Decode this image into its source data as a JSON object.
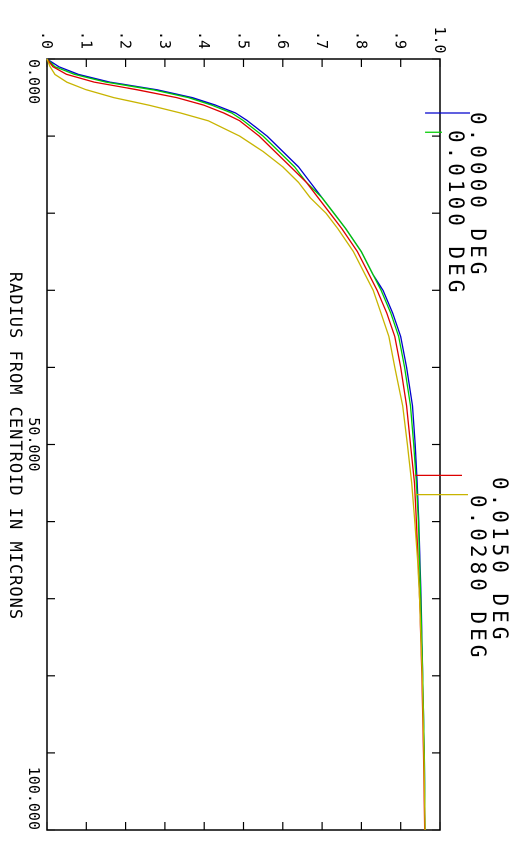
{
  "chart_data": {
    "type": "line",
    "xlabel": "RADIUS FROM CENTROID IN MICRONS",
    "xlim": [
      0,
      100
    ],
    "ylim": [
      0,
      1.0
    ],
    "x_tick_labels": [
      {
        "value": 0,
        "label": "0.000"
      },
      {
        "value": 50,
        "label": "50.000"
      },
      {
        "value": 100,
        "label": "100.000"
      }
    ],
    "y_tick_labels": [
      {
        "value": 0.0,
        "label": ".0"
      },
      {
        "value": 0.1,
        "label": ".1"
      },
      {
        "value": 0.2,
        "label": ".2"
      },
      {
        "value": 0.3,
        "label": ".3"
      },
      {
        "value": 0.4,
        "label": ".4"
      },
      {
        "value": 0.5,
        "label": ".5"
      },
      {
        "value": 0.6,
        "label": ".6"
      },
      {
        "value": 0.7,
        "label": ".7"
      },
      {
        "value": 0.8,
        "label": ".8"
      },
      {
        "value": 0.9,
        "label": ".9"
      },
      {
        "value": 1.0,
        "label": "1.0"
      }
    ],
    "series": [
      {
        "name": "0.0000 DEG",
        "color": "#0000cc",
        "x": [
          0,
          1,
          2,
          3,
          4,
          5,
          6,
          7,
          8,
          10,
          12,
          14,
          16,
          18,
          20,
          22,
          25,
          28,
          30,
          33,
          36,
          40,
          45,
          50,
          55,
          60,
          70,
          80,
          90,
          100
        ],
        "y": [
          0.0,
          0.03,
          0.08,
          0.16,
          0.28,
          0.37,
          0.43,
          0.48,
          0.51,
          0.56,
          0.6,
          0.64,
          0.67,
          0.7,
          0.73,
          0.76,
          0.8,
          0.83,
          0.855,
          0.88,
          0.9,
          0.915,
          0.93,
          0.937,
          0.942,
          0.946,
          0.952,
          0.956,
          0.96,
          0.962
        ]
      },
      {
        "name": "0.0100 DEG",
        "color": "#00cc00",
        "x": [
          0,
          1,
          2,
          3,
          4,
          5,
          6,
          7,
          8,
          10,
          12,
          14,
          16,
          18,
          20,
          22,
          25,
          28,
          30,
          33,
          36,
          40,
          45,
          50,
          55,
          60,
          70,
          80,
          90,
          100
        ],
        "y": [
          0.0,
          0.02,
          0.07,
          0.15,
          0.27,
          0.36,
          0.42,
          0.47,
          0.5,
          0.55,
          0.59,
          0.63,
          0.66,
          0.7,
          0.73,
          0.76,
          0.8,
          0.83,
          0.85,
          0.875,
          0.895,
          0.91,
          0.925,
          0.933,
          0.94,
          0.945,
          0.951,
          0.956,
          0.96,
          0.962
        ]
      },
      {
        "name": "0.0150 DEG",
        "color": "#dd0000",
        "x": [
          0,
          1,
          2,
          3,
          4,
          5,
          6,
          7,
          8,
          10,
          12,
          14,
          16,
          18,
          20,
          22,
          25,
          28,
          30,
          33,
          36,
          40,
          45,
          50,
          55,
          60,
          70,
          80,
          90,
          100
        ],
        "y": [
          0.0,
          0.015,
          0.05,
          0.12,
          0.23,
          0.33,
          0.4,
          0.45,
          0.49,
          0.54,
          0.58,
          0.62,
          0.66,
          0.69,
          0.72,
          0.75,
          0.79,
          0.82,
          0.84,
          0.865,
          0.885,
          0.9,
          0.915,
          0.925,
          0.935,
          0.94,
          0.948,
          0.954,
          0.958,
          0.961
        ]
      },
      {
        "name": "0.0280 DEG",
        "color": "#c8b400",
        "x": [
          0,
          1,
          2,
          3,
          4,
          5,
          6,
          7,
          8,
          10,
          12,
          14,
          16,
          18,
          20,
          22,
          25,
          28,
          30,
          33,
          36,
          40,
          45,
          50,
          55,
          60,
          65,
          70,
          80,
          90,
          100
        ],
        "y": [
          0.0,
          0.008,
          0.02,
          0.05,
          0.1,
          0.17,
          0.26,
          0.34,
          0.41,
          0.49,
          0.55,
          0.6,
          0.64,
          0.67,
          0.71,
          0.74,
          0.78,
          0.81,
          0.83,
          0.85,
          0.87,
          0.885,
          0.905,
          0.917,
          0.928,
          0.936,
          0.943,
          0.948,
          0.955,
          0.959,
          0.962
        ]
      }
    ],
    "legend": [
      {
        "label": "0.0000 DEG",
        "color": "#0000cc",
        "y": 0.962,
        "x_at": 7
      },
      {
        "label": "0.0100 DEG",
        "color": "#00cc00",
        "y": 0.962,
        "x_at": 9.5
      },
      {
        "label": "0.0150 DEG",
        "color": "#dd0000",
        "y": 0.937,
        "x_at": 54
      },
      {
        "label": "0.0280 DEG",
        "color": "#c8b400",
        "y": 0.937,
        "x_at": 56.5
      }
    ]
  }
}
